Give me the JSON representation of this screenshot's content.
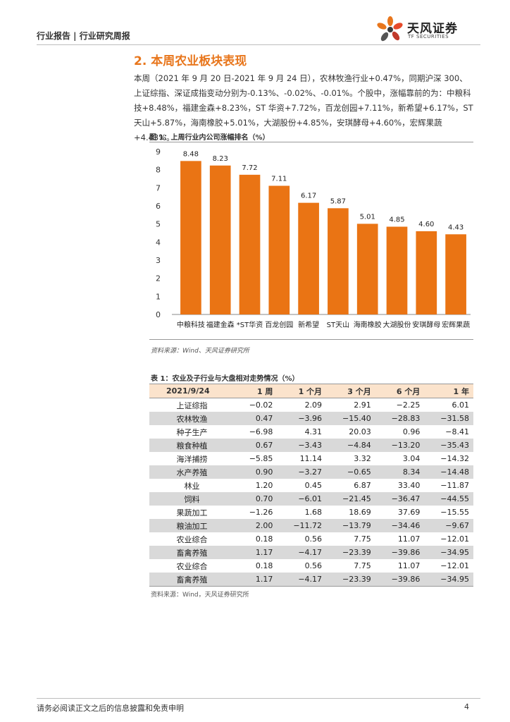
{
  "header": {
    "breadcrumb": "行业报告 | 行业研究周报",
    "logo_name": "天风证券",
    "logo_sub": "TF SECURITIES"
  },
  "section": {
    "title": "2. 本周农业板块表现",
    "intro": "本周（2021 年 9 月 20 日-2021 年 9 月 24 日），农林牧渔行业+0.47%，同期沪深 300、上证综指、深证成指变动分别为-0.13%、-0.02%、-0.01%。个股中，涨幅靠前的为：中粮科技+8.48%，福建金森+8.23%，ST 华资+7.72%，百龙创园+7.11%，新希望+6.17%，ST 天山+5.87%，海南橡胶+5.01%，大湖股份+4.85%，安琪酵母+4.60%，宏辉果蔬+4.43%。"
  },
  "figure": {
    "title": "图 1：上周行业内公司涨幅排名（%）",
    "source": "资料来源：Wind、天风证券研究所"
  },
  "chart_data": {
    "type": "bar",
    "title": "上周行业内公司涨幅排名（%）",
    "categories": [
      "中粮科技",
      "福建金森",
      "*ST华资",
      "百龙创园",
      "新希望",
      "ST天山",
      "海南橡胶",
      "大湖股份",
      "安琪酵母",
      "宏辉果蔬"
    ],
    "values": [
      8.48,
      8.23,
      7.72,
      7.11,
      6.17,
      5.87,
      5.01,
      4.85,
      4.6,
      4.43
    ],
    "data_labels": [
      "8.48",
      "8.23",
      "7.72",
      "7.11",
      "6.17",
      "5.87",
      "5.01",
      "4.85",
      "4.60",
      "4.43"
    ],
    "ylim": [
      0,
      9
    ],
    "yticks": [
      "0",
      "1",
      "2",
      "3",
      "4",
      "5",
      "6",
      "7",
      "8",
      "9"
    ],
    "xlabel": "",
    "ylabel": "",
    "bar_color": "#ea7414"
  },
  "table": {
    "title": "表 1：农业及子行业与大盘相对走势情况（%）",
    "headers": [
      "2021/9/24",
      "1 周",
      "1 个月",
      "3 个月",
      "6 个月",
      "1 年"
    ],
    "rows": [
      [
        "上证综指",
        "−0.02",
        "2.09",
        "2.91",
        "−2.25",
        "6.01"
      ],
      [
        "农林牧渔",
        "0.47",
        "−3.96",
        "−15.40",
        "−28.83",
        "−31.58"
      ],
      [
        "种子生产",
        "−6.98",
        "4.31",
        "20.03",
        "0.96",
        "−8.41"
      ],
      [
        "粮食种植",
        "0.67",
        "−3.43",
        "−4.84",
        "−13.20",
        "−35.43"
      ],
      [
        "海洋捕捞",
        "−5.85",
        "11.14",
        "3.32",
        "3.04",
        "−14.32"
      ],
      [
        "水产养殖",
        "0.90",
        "−3.27",
        "−0.65",
        "8.34",
        "−14.48"
      ],
      [
        "林业",
        "1.20",
        "0.45",
        "6.87",
        "33.40",
        "−11.87"
      ],
      [
        "饲料",
        "0.70",
        "−6.01",
        "−21.45",
        "−36.47",
        "−44.55"
      ],
      [
        "果蔬加工",
        "−1.26",
        "1.68",
        "18.69",
        "37.69",
        "−15.55"
      ],
      [
        "粮油加工",
        "2.00",
        "−11.72",
        "−13.79",
        "−34.46",
        "−9.67"
      ],
      [
        "农业综合",
        "0.18",
        "0.56",
        "7.75",
        "11.07",
        "−12.01"
      ],
      [
        "畜禽养殖",
        "1.17",
        "−4.17",
        "−23.39",
        "−39.86",
        "−34.95"
      ],
      [
        "农业综合",
        "0.18",
        "0.56",
        "7.75",
        "11.07",
        "−12.01"
      ],
      [
        "畜禽养殖",
        "1.17",
        "−4.17",
        "−23.39",
        "−39.86",
        "−34.95"
      ]
    ],
    "source": "资料来源：Wind，天风证券研究所"
  },
  "footer": {
    "disclaimer": "请务必阅读正文之后的信息披露和免责申明",
    "page": "4"
  },
  "colors": {
    "accent": "#e8761c",
    "header_fill": "#fbe3cc",
    "row_alt": "#d9d9d9"
  }
}
